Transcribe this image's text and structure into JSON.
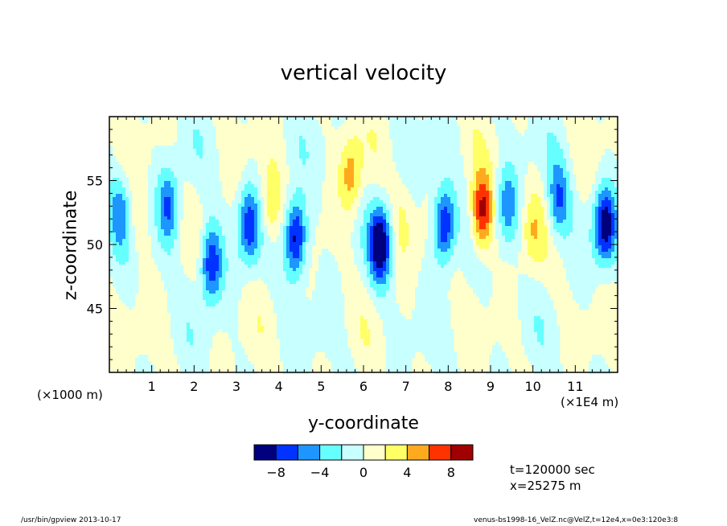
{
  "chart_data": {
    "type": "heatmap",
    "title": "vertical velocity",
    "xlabel": "y-coordinate",
    "ylabel": "z-coordinate",
    "x_unit_left": "(×1000 m)",
    "x_unit_right": "(×1E4 m)",
    "xlim": [
      0,
      120000
    ],
    "ylim": [
      40000,
      60000
    ],
    "x_ticks": [
      10000,
      20000,
      30000,
      40000,
      50000,
      60000,
      70000,
      80000,
      90000,
      100000,
      110000
    ],
    "x_tick_labels": [
      "1",
      "2",
      "3",
      "4",
      "5",
      "6",
      "7",
      "8",
      "9",
      "10",
      "11"
    ],
    "y_ticks": [
      45000,
      50000,
      55000
    ],
    "y_tick_labels": [
      "45",
      "50",
      "55"
    ],
    "colorbar": {
      "levels": [
        -10,
        -8,
        -6,
        -4,
        -2,
        0,
        2,
        4,
        6,
        8,
        10
      ],
      "colors": [
        "#00007f",
        "#0033ff",
        "#1e96ff",
        "#66ffff",
        "#c8ffff",
        "#ffffcc",
        "#ffff66",
        "#ffaa1e",
        "#ff3300",
        "#a00000"
      ],
      "tick_values": [
        -8,
        -4,
        0,
        4,
        8
      ],
      "tick_labels": [
        "−8",
        "−4",
        "0",
        "4",
        "8"
      ]
    },
    "features": [
      {
        "y": 2500,
        "z": 52500,
        "w": -5
      },
      {
        "y": 7000,
        "z": 52000,
        "w": 2
      },
      {
        "y": 14000,
        "z": 53000,
        "w": -6
      },
      {
        "y": 24000,
        "z": 48500,
        "w": -8
      },
      {
        "y": 33000,
        "z": 51500,
        "w": -7
      },
      {
        "y": 38000,
        "z": 53000,
        "w": 4
      },
      {
        "y": 44000,
        "z": 50500,
        "w": -10
      },
      {
        "y": 57000,
        "z": 55500,
        "w": 5
      },
      {
        "y": 64000,
        "z": 50000,
        "w": -10
      },
      {
        "y": 69000,
        "z": 52000,
        "w": 2
      },
      {
        "y": 79000,
        "z": 51500,
        "w": -9
      },
      {
        "y": 88000,
        "z": 52500,
        "w": 9
      },
      {
        "y": 94000,
        "z": 53000,
        "w": -5
      },
      {
        "y": 100000,
        "z": 51000,
        "w": 3
      },
      {
        "y": 106000,
        "z": 53500,
        "w": -6
      },
      {
        "y": 117000,
        "z": 51500,
        "w": -9
      }
    ]
  },
  "info": {
    "time": "t=120000 sec",
    "xpos": "x=25275 m"
  },
  "footer": {
    "left": "/usr/bin/gpview   2013-10-17",
    "right": "venus-bs1998-16_VelZ.nc@VelZ,t=12e4,x=0e3:120e3:8"
  }
}
